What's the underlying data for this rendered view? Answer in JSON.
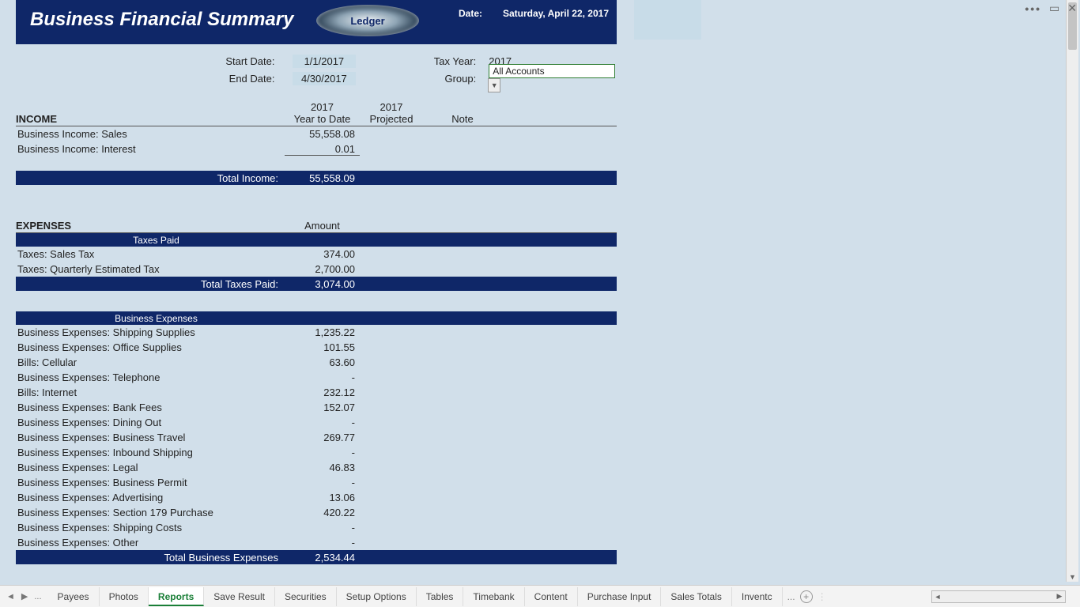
{
  "window": {
    "close": "✕",
    "restore": "▭",
    "more": "•••"
  },
  "banner": {
    "title": "Business Financial Summary",
    "badge": "Ledger",
    "date_label": "Date:",
    "date_value": "Saturday, April 22, 2017"
  },
  "filters": {
    "start_date_label": "Start Date:",
    "start_date_value": "1/1/2017",
    "end_date_label": "End Date:",
    "end_date_value": "4/30/2017",
    "tax_year_label": "Tax Year:",
    "tax_year_value": "2017",
    "group_label": "Group:",
    "group_value": "All Accounts"
  },
  "income": {
    "col_year1": "2017",
    "col_year2": "2017",
    "heading": "INCOME",
    "col2": "Year to Date",
    "col3": "Projected",
    "col4": "Note",
    "rows": [
      {
        "label": "Business Income: Sales",
        "value": "55,558.08"
      },
      {
        "label": "Business Income: Interest",
        "value": "0.01"
      }
    ],
    "total_label": "Total Income:",
    "total_value": "55,558.09"
  },
  "expenses": {
    "heading": "EXPENSES",
    "amount_col": "Amount",
    "taxes": {
      "subhead": "Taxes Paid",
      "rows": [
        {
          "label": "Taxes: Sales Tax",
          "value": "374.00"
        },
        {
          "label": "Taxes: Quarterly Estimated Tax",
          "value": "2,700.00"
        }
      ],
      "total_label": "Total Taxes Paid:",
      "total_value": "3,074.00"
    },
    "business": {
      "subhead": "Business Expenses",
      "rows": [
        {
          "label": "Business Expenses: Shipping Supplies",
          "value": "1,235.22"
        },
        {
          "label": "Business Expenses: Office Supplies",
          "value": "101.55"
        },
        {
          "label": "Bills: Cellular",
          "value": "63.60"
        },
        {
          "label": "Business Expenses: Telephone",
          "value": "-"
        },
        {
          "label": "Bills: Internet",
          "value": "232.12"
        },
        {
          "label": "Business Expenses: Bank Fees",
          "value": "152.07"
        },
        {
          "label": "Business Expenses: Dining Out",
          "value": "-"
        },
        {
          "label": "Business Expenses: Business Travel",
          "value": "269.77"
        },
        {
          "label": "Business Expenses: Inbound Shipping",
          "value": "-"
        },
        {
          "label": "Business Expenses: Legal",
          "value": "46.83"
        },
        {
          "label": "Business Expenses: Business Permit",
          "value": "-"
        },
        {
          "label": "Business Expenses: Advertising",
          "value": "13.06"
        },
        {
          "label": "Business Expenses: Section 179 Purchase",
          "value": "420.22"
        },
        {
          "label": "Business Expenses: Shipping Costs",
          "value": "-"
        },
        {
          "label": "Business Expenses: Other",
          "value": "-"
        }
      ],
      "total_label": "Total Business Expenses",
      "total_value": "2,534.44"
    }
  },
  "tabs": {
    "ellipsis": "...",
    "items": [
      "Payees",
      "Photos",
      "Reports",
      "Save Result",
      "Securities",
      "Setup Options",
      "Tables",
      "Timebank",
      "Content",
      "Purchase Input",
      "Sales Totals",
      "Inventc"
    ],
    "active_index": 2,
    "more": "..."
  },
  "colors": {
    "banner_bg": "#0f2768",
    "page_bg": "#d1dfea",
    "cell_bg": "#c8dce8",
    "active_tab": "#1a7f37",
    "select_border": "#2e7d32"
  }
}
